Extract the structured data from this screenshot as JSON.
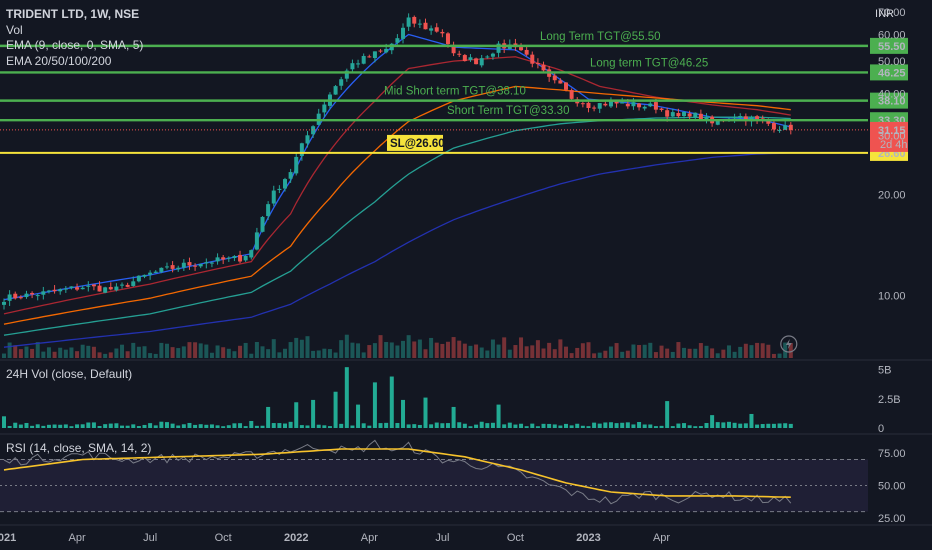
{
  "legend": {
    "title": "TRIDENT LTD, 1W, NSE",
    "vol": "Vol",
    "ema": "EMA (9, close, 0, SMA, 5)",
    "ema_multi": "EMA 20/50/100/200"
  },
  "currency": "INR",
  "pane_24h_vol": {
    "label": "24H Vol (close, Default)",
    "ticks": [
      "5B",
      "2.5B",
      "0"
    ]
  },
  "pane_rsi": {
    "label": "RSI (14, close, SMA, 14, 2)",
    "ticks": [
      "75.00",
      "50.00",
      "25.00"
    ]
  },
  "colors": {
    "background": "#131722",
    "up": "#26a69a",
    "down": "#ef5350",
    "target_line": "#4caf50",
    "sl_line": "#f5e33b",
    "ema9": "#2962ff",
    "ema20": "#b22833",
    "ema50": "#ff6d00",
    "ema100": "#26a69a",
    "ema200": "#2433b8",
    "rsi": "#787b86",
    "rsi_sma": "#f7c32b",
    "vol_bar": "#22ab94",
    "rsi_band": "#7e57c2"
  },
  "chart_data": {
    "type": "candlestick",
    "symbol": "TRIDENT LTD",
    "interval": "1W",
    "exchange": "NSE",
    "y_scale": "log",
    "ylim": [
      6.5,
      74
    ],
    "y_ticks": [
      "70.00",
      "60.00",
      "50.00",
      "40.00",
      "30.00",
      "20.00",
      "10.00"
    ],
    "x_ticks": [
      "2021",
      "Apr",
      "Jul",
      "Oct",
      "2022",
      "Apr",
      "Jul",
      "Oct",
      "2023",
      "Apr"
    ],
    "levels": [
      {
        "name": "Long Term TGT@55.50",
        "value": 55.5,
        "axis_label": "55.50",
        "type": "target"
      },
      {
        "name": "Long term TGT@46.25",
        "value": 46.25,
        "axis_label": "46.25",
        "type": "target"
      },
      {
        "name": "Mid Short term TGT@38.10",
        "value": 38.1,
        "axis_label": "38.10",
        "type": "target"
      },
      {
        "name": "Short Term TGT@33.30",
        "value": 33.3,
        "axis_label": "33.30",
        "type": "target"
      },
      {
        "name": "SL@26.60₹",
        "value": 26.6,
        "axis_label": "26.60",
        "type": "stoploss"
      }
    ],
    "last_price": {
      "value": 31.15,
      "label": "31.15",
      "countdown": "2d 4h"
    },
    "price_path": [
      [
        0,
        9.8
      ],
      [
        8,
        10.2
      ],
      [
        14,
        10.6
      ],
      [
        20,
        10.4
      ],
      [
        26,
        11.6
      ],
      [
        32,
        12.3
      ],
      [
        36,
        12.6
      ],
      [
        42,
        12.9
      ],
      [
        44,
        13.6
      ],
      [
        47,
        19.0
      ],
      [
        51,
        23.5
      ],
      [
        54,
        30.0
      ],
      [
        58,
        40.0
      ],
      [
        62,
        49.0
      ],
      [
        66,
        52.5
      ],
      [
        68,
        54.0
      ],
      [
        70,
        58.5
      ],
      [
        72,
        66.0
      ],
      [
        75,
        63.0
      ],
      [
        78,
        61.0
      ],
      [
        80,
        52.0
      ],
      [
        84,
        50.0
      ],
      [
        88,
        55.0
      ],
      [
        91,
        56.0
      ],
      [
        93,
        52.0
      ],
      [
        95,
        48.0
      ],
      [
        97,
        44.0
      ],
      [
        99,
        42.0
      ],
      [
        101,
        39.0
      ],
      [
        104,
        37.0
      ],
      [
        108,
        37.5
      ],
      [
        112,
        37.0
      ],
      [
        116,
        36.5
      ],
      [
        118,
        35.0
      ],
      [
        120,
        34.0
      ],
      [
        122,
        35.0
      ],
      [
        126,
        32.5
      ],
      [
        130,
        34.5
      ],
      [
        133,
        33.5
      ],
      [
        135,
        33.0
      ],
      [
        137,
        32.0
      ],
      [
        139,
        31.5
      ],
      [
        140,
        31.15
      ]
    ],
    "series": [
      {
        "name": "EMA 9",
        "path": [
          [
            0,
            9.7
          ],
          [
            26,
            11.5
          ],
          [
            44,
            13.3
          ],
          [
            51,
            22.0
          ],
          [
            58,
            36.0
          ],
          [
            66,
            50.0
          ],
          [
            72,
            60.0
          ],
          [
            80,
            55.0
          ],
          [
            91,
            54.0
          ],
          [
            99,
            44.0
          ],
          [
            104,
            38.5
          ],
          [
            115,
            37.0
          ],
          [
            126,
            34.0
          ],
          [
            134,
            33.6
          ],
          [
            140,
            31.8
          ]
        ]
      },
      {
        "name": "EMA 20",
        "path": [
          [
            0,
            8.8
          ],
          [
            26,
            10.8
          ],
          [
            44,
            12.6
          ],
          [
            51,
            17.5
          ],
          [
            58,
            27.0
          ],
          [
            66,
            38.0
          ],
          [
            72,
            47.5
          ],
          [
            80,
            50.0
          ],
          [
            91,
            51.5
          ],
          [
            99,
            47.0
          ],
          [
            106,
            42.0
          ],
          [
            116,
            39.0
          ],
          [
            126,
            37.0
          ],
          [
            134,
            35.8
          ],
          [
            140,
            34.5
          ]
        ]
      },
      {
        "name": "EMA 50",
        "path": [
          [
            0,
            8.2
          ],
          [
            26,
            9.8
          ],
          [
            44,
            11.4
          ],
          [
            51,
            14.0
          ],
          [
            58,
            19.5
          ],
          [
            66,
            27.0
          ],
          [
            72,
            33.0
          ],
          [
            80,
            38.0
          ],
          [
            91,
            42.0
          ],
          [
            99,
            41.0
          ],
          [
            106,
            40.0
          ],
          [
            116,
            38.8
          ],
          [
            126,
            37.6
          ],
          [
            134,
            36.8
          ],
          [
            140,
            35.8
          ]
        ]
      },
      {
        "name": "EMA 100",
        "path": [
          [
            0,
            7.6
          ],
          [
            26,
            8.8
          ],
          [
            44,
            10.2
          ],
          [
            51,
            11.8
          ],
          [
            58,
            14.8
          ],
          [
            66,
            19.0
          ],
          [
            72,
            23.0
          ],
          [
            80,
            27.5
          ],
          [
            91,
            31.0
          ],
          [
            99,
            32.5
          ],
          [
            106,
            33.2
          ],
          [
            116,
            33.8
          ],
          [
            126,
            34.0
          ],
          [
            134,
            34.0
          ],
          [
            140,
            33.7
          ]
        ]
      },
      {
        "name": "EMA 200",
        "path": [
          [
            0,
            7.0
          ],
          [
            26,
            7.8
          ],
          [
            44,
            8.6
          ],
          [
            51,
            9.4
          ],
          [
            58,
            10.8
          ],
          [
            66,
            12.6
          ],
          [
            72,
            14.4
          ],
          [
            80,
            16.8
          ],
          [
            91,
            19.5
          ],
          [
            99,
            21.5
          ],
          [
            106,
            23.0
          ],
          [
            116,
            24.5
          ],
          [
            126,
            25.8
          ],
          [
            134,
            26.4
          ],
          [
            140,
            26.6
          ]
        ]
      }
    ],
    "volume_24h_scale": [
      0,
      5.3
    ],
    "volume_24h_peaks": [
      [
        0,
        1.0
      ],
      [
        44,
        0.6
      ],
      [
        47,
        1.8
      ],
      [
        52,
        2.2
      ],
      [
        55,
        2.4
      ],
      [
        59,
        3.1
      ],
      [
        61,
        5.2
      ],
      [
        63,
        2.0
      ],
      [
        66,
        3.9
      ],
      [
        69,
        4.4
      ],
      [
        71,
        2.4
      ],
      [
        75,
        2.6
      ],
      [
        80,
        1.8
      ],
      [
        88,
        2.0
      ],
      [
        118,
        2.3
      ],
      [
        126,
        1.1
      ],
      [
        133,
        1.2
      ]
    ],
    "rsi_scale": [
      22,
      88
    ],
    "rsi_bands": [
      30,
      50,
      70
    ],
    "rsi_path": [
      [
        0,
        68
      ],
      [
        14,
        74
      ],
      [
        22,
        70
      ],
      [
        30,
        71
      ],
      [
        42,
        72
      ],
      [
        48,
        76
      ],
      [
        56,
        80
      ],
      [
        62,
        76
      ],
      [
        66,
        82
      ],
      [
        70,
        76
      ],
      [
        72,
        80
      ],
      [
        78,
        70
      ],
      [
        84,
        66
      ],
      [
        90,
        62
      ],
      [
        96,
        52
      ],
      [
        102,
        43
      ],
      [
        108,
        38
      ],
      [
        114,
        44
      ],
      [
        120,
        40
      ],
      [
        126,
        44
      ],
      [
        132,
        40
      ],
      [
        140,
        38
      ]
    ],
    "rsi_sma_path": [
      [
        0,
        62
      ],
      [
        14,
        70
      ],
      [
        30,
        72
      ],
      [
        46,
        74
      ],
      [
        60,
        78
      ],
      [
        72,
        78
      ],
      [
        82,
        72
      ],
      [
        92,
        62
      ],
      [
        100,
        52
      ],
      [
        108,
        45
      ],
      [
        118,
        42
      ],
      [
        130,
        42
      ],
      [
        140,
        41
      ]
    ]
  }
}
